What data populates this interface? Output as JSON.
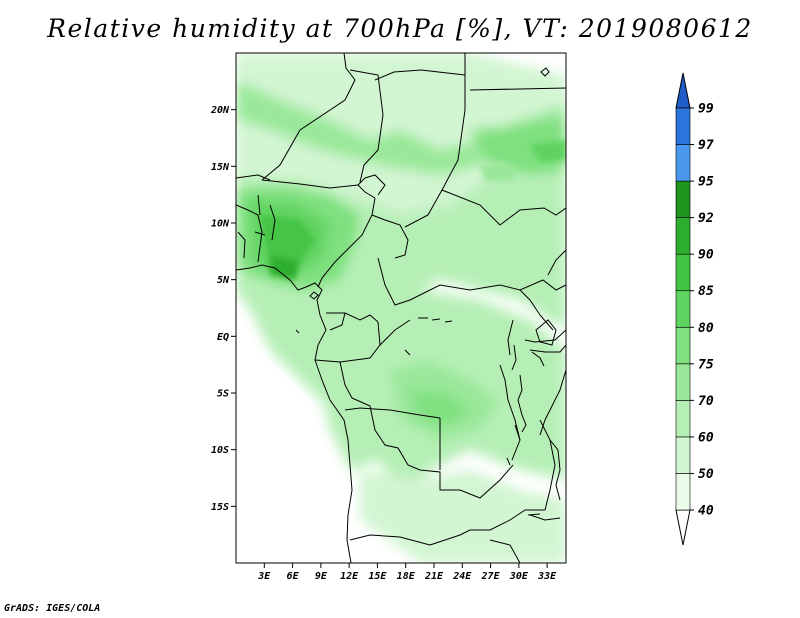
{
  "title": "Relative humidity at 700hPa [%], VT: 2019080612",
  "credit": "GrADS: IGES/COLA",
  "map": {
    "lon_range": [
      0,
      35
    ],
    "lat_range": [
      -20,
      25
    ],
    "lat_ticks": [
      {
        "value": 20,
        "label": "20N"
      },
      {
        "value": 15,
        "label": "15N"
      },
      {
        "value": 10,
        "label": "10N"
      },
      {
        "value": 5,
        "label": "5N"
      },
      {
        "value": 0,
        "label": "EQ"
      },
      {
        "value": -5,
        "label": "5S"
      },
      {
        "value": -10,
        "label": "10S"
      },
      {
        "value": -15,
        "label": "15S"
      }
    ],
    "lon_ticks": [
      {
        "value": 3,
        "label": "3E"
      },
      {
        "value": 6,
        "label": "6E"
      },
      {
        "value": 9,
        "label": "9E"
      },
      {
        "value": 12,
        "label": "12E"
      },
      {
        "value": 15,
        "label": "15E"
      },
      {
        "value": 18,
        "label": "18E"
      },
      {
        "value": 21,
        "label": "21E"
      },
      {
        "value": 24,
        "label": "24E"
      },
      {
        "value": 27,
        "label": "27E"
      },
      {
        "value": 30,
        "label": "30E"
      },
      {
        "value": 33,
        "label": "33E"
      }
    ]
  },
  "colorbar": {
    "levels": [
      {
        "label": "40",
        "color": "#eafbea"
      },
      {
        "label": "50",
        "color": "#d2f5d2"
      },
      {
        "label": "60",
        "color": "#b6efb6"
      },
      {
        "label": "70",
        "color": "#9ae89a"
      },
      {
        "label": "75",
        "color": "#7ee07e"
      },
      {
        "label": "80",
        "color": "#5fd35f"
      },
      {
        "label": "85",
        "color": "#44c444"
      },
      {
        "label": "90",
        "color": "#2eae2e"
      },
      {
        "label": "92",
        "color": "#1d951d"
      },
      {
        "label": "95",
        "color": "#4a98ee"
      },
      {
        "label": "97",
        "color": "#2a74dc"
      },
      {
        "label": "99",
        "color": "#1f5ec8"
      }
    ],
    "below_color": "#ffffff",
    "above_color": "#1f5ec8"
  }
}
